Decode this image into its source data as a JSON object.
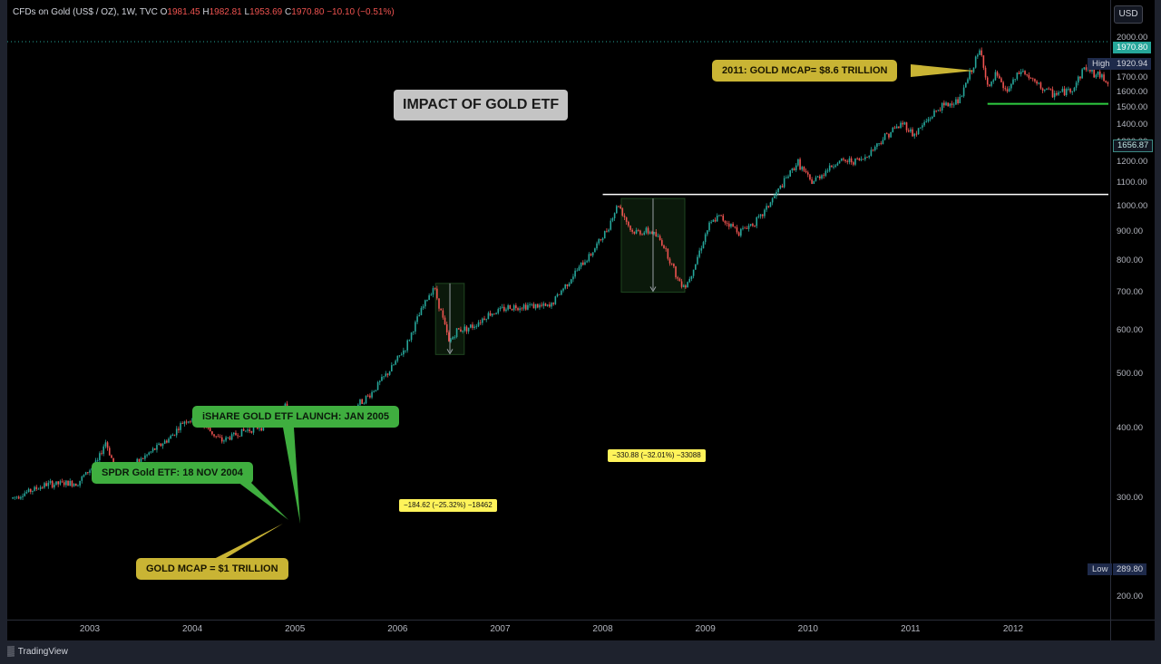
{
  "header": {
    "symbol": "CFDs on Gold (US$ / OZ), 1W, TVC",
    "o_label": "O",
    "o_value": "1981.45",
    "h_label": "H",
    "h_value": "1982.81",
    "l_label": "L",
    "l_value": "1953.69",
    "c_label": "C",
    "c_value": "1970.80",
    "change": "−10.10 (−0.51%)"
  },
  "currency": "USD",
  "title": "IMPACT OF GOLD ETF",
  "callouts": {
    "ishare": "iSHARE GOLD ETF LAUNCH: JAN 2005",
    "spdr": "SPDR Gold ETF: 18 NOV 2004",
    "mcap_1t": "GOLD MCAP = $1 TRILLION",
    "mcap_2011": "2011: GOLD MCAP= $8.6 TRILLION"
  },
  "measurements": {
    "m2006": "−184.62 (−25.32%) −18462",
    "m2008": "−330.88 (−32.01%) −33088"
  },
  "price_tags": {
    "current": "1970.80",
    "high_label": "High",
    "high_value": "1920.94",
    "low_label": "Low",
    "low_value": "289.80",
    "last": "1656.87"
  },
  "footer": {
    "brand": "TradingView",
    "logo_icon": "tradingview-logo-icon"
  },
  "colors": {
    "up": "#26a69a",
    "down": "#ef5350",
    "background": "#000000",
    "support": "#2ecc40",
    "resistance": "#ffffff"
  },
  "chart_data": {
    "type": "candlestick",
    "title": "",
    "xlabel": "",
    "ylabel": "",
    "ylim": [
      130,
      2080
    ],
    "y_ticks": [
      "2000.00",
      "1900.00",
      "1800.00",
      "1700.00",
      "1600.00",
      "1500.00",
      "1400.00",
      "1300.00",
      "1200.00",
      "1100.00",
      "1000.00",
      "900.00",
      "800.00",
      "700.00",
      "600.00",
      "500.00",
      "400.00",
      "300.00",
      "200.00"
    ],
    "x_ticks": [
      "2003",
      "2004",
      "2005",
      "2006",
      "2007",
      "2008",
      "2009",
      "2010",
      "2011",
      "2012"
    ],
    "grid": false,
    "price_series_approx": [
      [
        2002.25,
        300
      ],
      [
        2002.6,
        318
      ],
      [
        2002.9,
        320
      ],
      [
        2003.1,
        350
      ],
      [
        2003.17,
        380
      ],
      [
        2003.3,
        325
      ],
      [
        2003.5,
        350
      ],
      [
        2003.8,
        385
      ],
      [
        2003.95,
        415
      ],
      [
        2004.1,
        410
      ],
      [
        2004.3,
        380
      ],
      [
        2004.5,
        395
      ],
      [
        2004.7,
        405
      ],
      [
        2004.9,
        440
      ],
      [
        2005.0,
        425
      ],
      [
        2005.3,
        425
      ],
      [
        2005.55,
        430
      ],
      [
        2005.75,
        460
      ],
      [
        2005.95,
        510
      ],
      [
        2006.1,
        560
      ],
      [
        2006.25,
        650
      ],
      [
        2006.37,
        720
      ],
      [
        2006.45,
        640
      ],
      [
        2006.52,
        570
      ],
      [
        2006.6,
        600
      ],
      [
        2006.75,
        610
      ],
      [
        2006.9,
        640
      ],
      [
        2007.1,
        660
      ],
      [
        2007.3,
        665
      ],
      [
        2007.5,
        660
      ],
      [
        2007.7,
        740
      ],
      [
        2007.9,
        820
      ],
      [
        2008.05,
        900
      ],
      [
        2008.17,
        1010
      ],
      [
        2008.3,
        900
      ],
      [
        2008.5,
        900
      ],
      [
        2008.6,
        860
      ],
      [
        2008.75,
        740
      ],
      [
        2008.83,
        720
      ],
      [
        2008.92,
        790
      ],
      [
        2009.05,
        920
      ],
      [
        2009.15,
        960
      ],
      [
        2009.35,
        900
      ],
      [
        2009.55,
        950
      ],
      [
        2009.75,
        1080
      ],
      [
        2009.92,
        1200
      ],
      [
        2010.05,
        1100
      ],
      [
        2010.3,
        1200
      ],
      [
        2010.55,
        1210
      ],
      [
        2010.8,
        1350
      ],
      [
        2010.95,
        1410
      ],
      [
        2011.05,
        1340
      ],
      [
        2011.3,
        1500
      ],
      [
        2011.5,
        1550
      ],
      [
        2011.65,
        1820
      ],
      [
        2011.7,
        1900
      ],
      [
        2011.78,
        1610
      ],
      [
        2011.85,
        1720
      ],
      [
        2011.95,
        1600
      ],
      [
        2012.1,
        1750
      ],
      [
        2012.25,
        1650
      ],
      [
        2012.4,
        1590
      ],
      [
        2012.5,
        1600
      ],
      [
        2012.6,
        1620
      ],
      [
        2012.72,
        1780
      ],
      [
        2012.82,
        1720
      ],
      [
        2012.9,
        1700
      ],
      [
        2012.95,
        1660
      ]
    ],
    "high": 1920.94,
    "low": 289.8,
    "horizontal_lines": [
      {
        "price": 1050,
        "from": 2008.0,
        "to": 2013.0
      },
      {
        "price": 1525,
        "from": 2011.75,
        "to": 2013.0
      }
    ],
    "measure_boxes": [
      {
        "from": 2006.37,
        "to": 2006.65,
        "top": 728,
        "bottom": 543
      },
      {
        "from": 2008.18,
        "to": 2008.8,
        "top": 1033,
        "bottom": 702
      }
    ]
  }
}
